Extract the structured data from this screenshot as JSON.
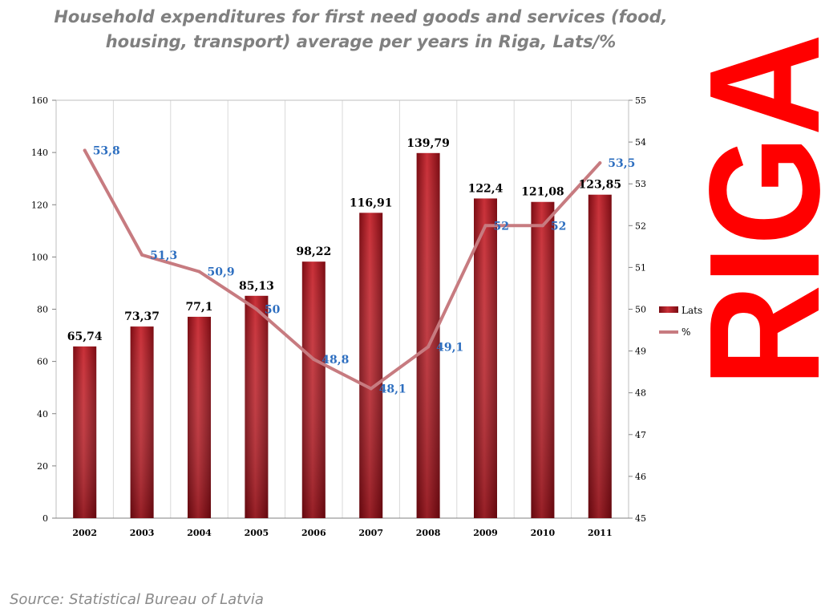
{
  "title": "Household expenditures for first need goods and services (food, housing, transport) average per years in Riga, Lats/%",
  "brand": {
    "text": "RIGA",
    "color": "#ff0000"
  },
  "source": "Source: Statistical Bureau of Latvia",
  "chart_data": {
    "type": "bar",
    "title": "Household expenditures for first need goods and services (food, housing, transport) average per years in Riga, Lats/%",
    "categories": [
      "2002",
      "2003",
      "2004",
      "2005",
      "2006",
      "2007",
      "2008",
      "2009",
      "2010",
      "2011"
    ],
    "series": [
      {
        "name": "Lats",
        "type": "bar",
        "axis": "left",
        "color": "#a3141c",
        "values": [
          65.74,
          73.37,
          77.1,
          85.13,
          98.22,
          116.91,
          139.79,
          122.4,
          121.08,
          123.85
        ],
        "labels": [
          "65,74",
          "73,37",
          "77,1",
          "85,13",
          "98,22",
          "116,91",
          "139,79",
          "122,4",
          "121,08",
          "123,85"
        ]
      },
      {
        "name": "%",
        "type": "line",
        "axis": "right",
        "color": "#c77b80",
        "label_color": "#2e6fc0",
        "values": [
          53.8,
          51.3,
          50.9,
          50,
          48.8,
          48.1,
          49.1,
          52,
          52,
          53.5
        ],
        "labels": [
          "53,8",
          "51,3",
          "50,9",
          "50",
          "48,8",
          "48,1",
          "49,1",
          "52",
          "52",
          "53,5"
        ]
      }
    ],
    "ylim_left": [
      0,
      160
    ],
    "yticks_left": [
      "0",
      "20",
      "40",
      "60",
      "80",
      "100",
      "120",
      "140",
      "160"
    ],
    "ylim_right": [
      45,
      55
    ],
    "yticks_right": [
      "45",
      "46",
      "47",
      "48",
      "49",
      "50",
      "51",
      "52",
      "53",
      "54",
      "55"
    ],
    "grid": "vertical lines",
    "legend": "right"
  }
}
